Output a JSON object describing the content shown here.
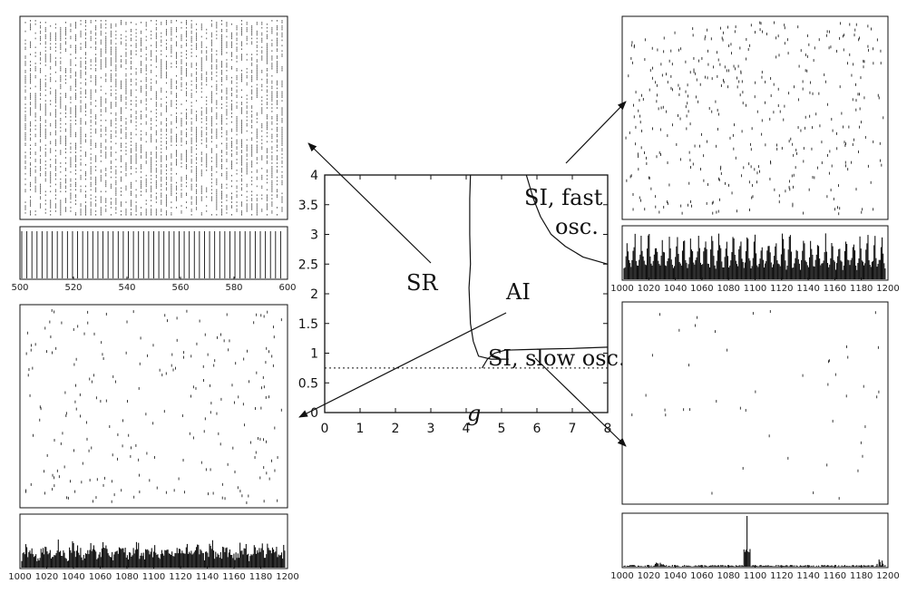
{
  "chart_data": [
    {
      "type": "line",
      "title": "",
      "xlabel": "g",
      "ylabel": "",
      "xlim": [
        0,
        8
      ],
      "ylim": [
        0,
        4
      ],
      "x_ticks": [
        "0",
        "1",
        "2",
        "3",
        "4",
        "5",
        "6",
        "7",
        "8"
      ],
      "y_ticks": [
        "0",
        "0.5",
        "1",
        "1.5",
        "2",
        "2.5",
        "3",
        "3.5",
        "4"
      ],
      "grid": false,
      "series": [
        {
          "style": "solid",
          "x": [
            4.12,
            4.1,
            4.1,
            4.12,
            4.08,
            4.1,
            4.12,
            4.2,
            4.35,
            4.7,
            5.2
          ],
          "y": [
            4,
            3.6,
            3.0,
            2.5,
            2.1,
            1.8,
            1.5,
            1.2,
            0.95,
            0.9,
            0.9
          ]
        },
        {
          "style": "solid",
          "x": [
            4.45,
            4.6,
            4.8,
            5.1,
            5.6,
            6.3,
            7.0,
            8.0
          ],
          "y": [
            0.75,
            0.9,
            1.0,
            1.05,
            1.06,
            1.07,
            1.08,
            1.1
          ]
        },
        {
          "style": "solid",
          "x": [
            5.7,
            5.9,
            6.1,
            6.4,
            6.8,
            7.3,
            8.0
          ],
          "y": [
            4,
            3.6,
            3.3,
            3.0,
            2.8,
            2.62,
            2.5
          ]
        },
        {
          "style": "dotted",
          "x": [
            0,
            8
          ],
          "y": [
            0.75,
            0.75
          ]
        }
      ],
      "annotations": [
        "SR",
        "AI",
        "SI, fast",
        "osc.",
        "SI, slow osc."
      ]
    },
    {
      "type": "scatter",
      "panel": "raster-top-left"
    },
    {
      "type": "bar",
      "panel": "rate-top-left",
      "x_ticks": [
        "500",
        "520",
        "540",
        "560",
        "580",
        "600"
      ],
      "xlim": [
        500,
        600
      ]
    },
    {
      "type": "scatter",
      "panel": "raster-bottom-left"
    },
    {
      "type": "bar",
      "panel": "rate-bottom-left",
      "x_ticks": [
        "1000",
        "1020",
        "1040",
        "1060",
        "1080",
        "1100",
        "1120",
        "1140",
        "1160",
        "1180",
        "1200"
      ],
      "xlim": [
        1000,
        1200
      ]
    },
    {
      "type": "scatter",
      "panel": "raster-top-right"
    },
    {
      "type": "bar",
      "panel": "rate-top-right",
      "x_ticks": [
        "1000",
        "1020",
        "1040",
        "1060",
        "1080",
        "1100",
        "1120",
        "1140",
        "1160",
        "1180",
        "1200"
      ],
      "xlim": [
        1000,
        1200
      ]
    },
    {
      "type": "scatter",
      "panel": "raster-bottom-right"
    },
    {
      "type": "bar",
      "panel": "rate-bottom-right",
      "x_ticks": [
        "1000",
        "1020",
        "1040",
        "1060",
        "1080",
        "1100",
        "1120",
        "1140",
        "1160",
        "1180",
        "1200"
      ],
      "xlim": [
        1000,
        1200
      ]
    }
  ]
}
